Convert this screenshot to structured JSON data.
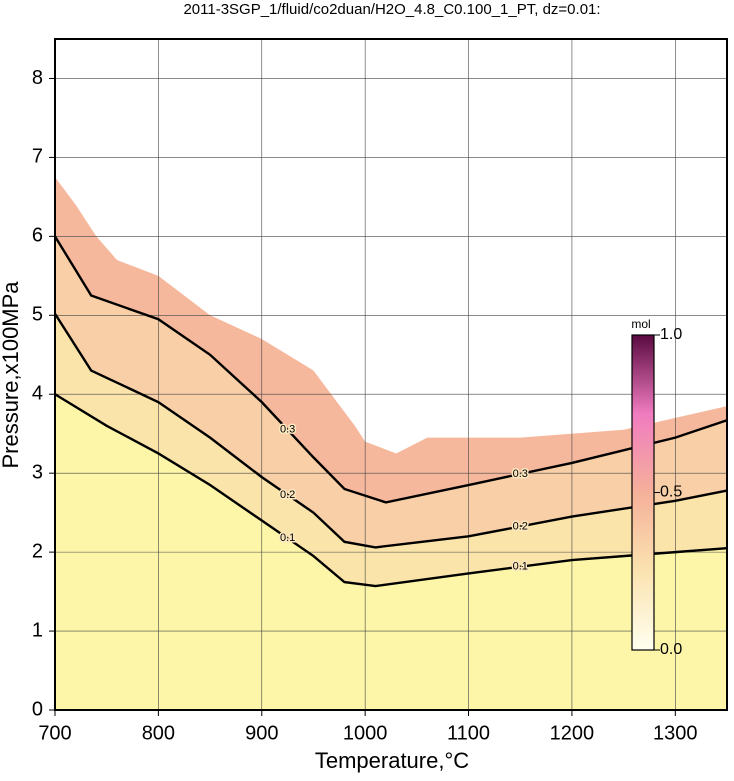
{
  "chart_data": {
    "type": "contour",
    "title": "2011-3SGP_1/fluid/co2duan/H2O_4.8_C0.100_1_PT, dz=0.01:",
    "xlabel": "Temperature,°C",
    "ylabel": "Pressure,x100MPa",
    "xlim": [
      700,
      1350
    ],
    "ylim": [
      0,
      8.5
    ],
    "xticks": [
      700,
      800,
      900,
      1000,
      1100,
      1200,
      1300
    ],
    "yticks": [
      0,
      1,
      2,
      3,
      4,
      5,
      6,
      7,
      8
    ],
    "grid": true,
    "valid_region": {
      "x": [
        700,
        720,
        740,
        760,
        800,
        850,
        900,
        950,
        990,
        1000,
        1030,
        1060,
        1150,
        1250,
        1300,
        1350
      ],
      "y": [
        6.75,
        6.4,
        6.0,
        5.7,
        5.5,
        5.0,
        4.7,
        4.3,
        3.6,
        3.4,
        3.25,
        3.45,
        3.45,
        3.55,
        3.7,
        3.85
      ]
    },
    "series": [
      {
        "level": 0.3,
        "color": "#000000",
        "x": [
          700,
          735,
          800,
          850,
          900,
          950,
          980,
          1020,
          1100,
          1200,
          1300,
          1350
        ],
        "y": [
          6.0,
          5.25,
          4.95,
          4.5,
          3.9,
          3.2,
          2.8,
          2.63,
          2.85,
          3.13,
          3.45,
          3.67
        ]
      },
      {
        "level": 0.2,
        "color": "#000000",
        "x": [
          700,
          735,
          800,
          850,
          900,
          950,
          980,
          1010,
          1100,
          1200,
          1300,
          1350
        ],
        "y": [
          5.02,
          4.3,
          3.9,
          3.45,
          2.95,
          2.5,
          2.13,
          2.06,
          2.2,
          2.45,
          2.65,
          2.78
        ]
      },
      {
        "level": 0.1,
        "color": "#000000",
        "x": [
          700,
          750,
          800,
          850,
          900,
          950,
          980,
          1010,
          1100,
          1200,
          1300,
          1350
        ],
        "y": [
          4.0,
          3.6,
          3.25,
          2.85,
          2.4,
          1.95,
          1.62,
          1.57,
          1.73,
          1.9,
          2.0,
          2.05
        ]
      }
    ],
    "colorbar": {
      "label": "mol",
      "ticks": [
        {
          "value": 0,
          "label": "0.0"
        },
        0.5,
        {
          "value": 1,
          "label": "1.0"
        }
      ],
      "lim": [
        0,
        1
      ]
    }
  }
}
